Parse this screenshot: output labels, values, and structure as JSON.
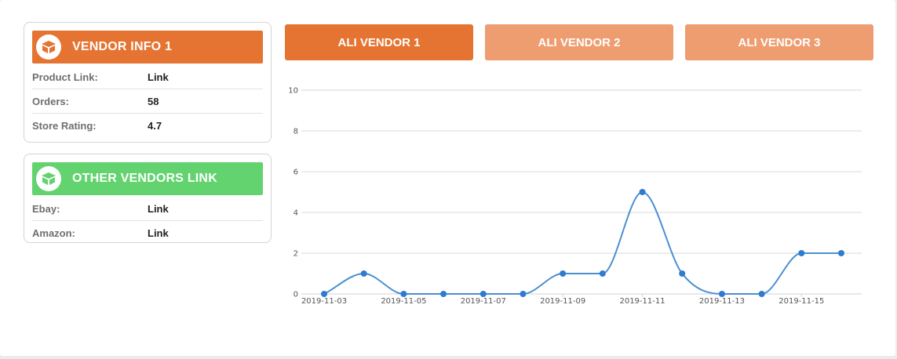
{
  "colors": {
    "orange": "#e57432",
    "orange_light": "#ee9d70",
    "green": "#62d36f",
    "line": "#4a8fd0",
    "point": "#2e7bd0"
  },
  "vendor_info": {
    "title": "VENDOR INFO 1",
    "icon": "box-icon",
    "rows": [
      {
        "label": "Product Link:",
        "value": "Link"
      },
      {
        "label": "Orders:",
        "value": "58"
      },
      {
        "label": "Store Rating:",
        "value": "4.7"
      }
    ]
  },
  "other_vendors": {
    "title": "OTHER VENDORS LINK",
    "icon": "box-icon",
    "rows": [
      {
        "label": "Ebay:",
        "value": "Link"
      },
      {
        "label": "Amazon:",
        "value": "Link"
      }
    ]
  },
  "tabs": [
    {
      "label": "ALI VENDOR 1",
      "active": true
    },
    {
      "label": "ALI VENDOR 2",
      "active": false
    },
    {
      "label": "ALI VENDOR 3",
      "active": false
    }
  ],
  "chart_data": {
    "type": "line",
    "title": "",
    "xlabel": "",
    "ylabel": "",
    "ylim": [
      0,
      10
    ],
    "yticks": [
      0,
      2,
      4,
      6,
      8,
      10
    ],
    "xtick_labels": [
      "2019-11-03",
      "2019-11-05",
      "2019-11-07",
      "2019-11-09",
      "2019-11-11",
      "2019-11-13",
      "2019-11-15"
    ],
    "grid": true,
    "series": [
      {
        "x": [
          "2019-11-03",
          "2019-11-04",
          "2019-11-05",
          "2019-11-06",
          "2019-11-07",
          "2019-11-08",
          "2019-11-09",
          "2019-11-10",
          "2019-11-11",
          "2019-11-12",
          "2019-11-13",
          "2019-11-14",
          "2019-11-15",
          "2019-11-16"
        ],
        "values": [
          0,
          1,
          0,
          0,
          0,
          0,
          1,
          1,
          5,
          1,
          0,
          0,
          2,
          2
        ]
      }
    ]
  }
}
